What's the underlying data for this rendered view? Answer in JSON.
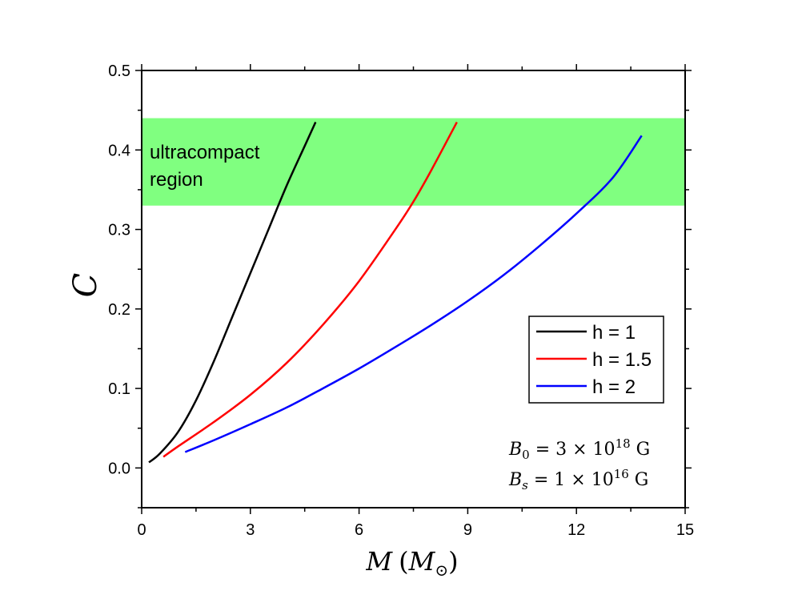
{
  "chart_data": {
    "type": "line",
    "xlabel": {
      "main": "M",
      "open": "(",
      "unit": "M",
      "unit_sub": "⊙",
      "close": ")"
    },
    "ylabel": "C",
    "xlim": [
      0,
      15
    ],
    "ylim": [
      -0.05,
      0.5
    ],
    "xticks": [
      0,
      3,
      6,
      9,
      12,
      15
    ],
    "xtick_labels": [
      "0",
      "3",
      "6",
      "9",
      "12",
      "15"
    ],
    "yticks": [
      0.0,
      0.1,
      0.2,
      0.3,
      0.4,
      0.5
    ],
    "ytick_labels": [
      "0.0",
      "0.1",
      "0.2",
      "0.3",
      "0.4",
      "0.5"
    ],
    "grid": false,
    "legend_position": "center-right",
    "band": {
      "y_min": 0.33,
      "y_max": 0.44,
      "color": "#80ff80",
      "label_line1": "ultracompact",
      "label_line2": "region"
    },
    "series": [
      {
        "name": "h = 1",
        "color": "#000000",
        "points": [
          [
            0.2,
            0.007
          ],
          [
            0.5,
            0.018
          ],
          [
            1.0,
            0.045
          ],
          [
            1.5,
            0.085
          ],
          [
            2.0,
            0.135
          ],
          [
            2.5,
            0.19
          ],
          [
            3.0,
            0.245
          ],
          [
            3.5,
            0.3
          ],
          [
            4.0,
            0.355
          ],
          [
            4.5,
            0.405
          ],
          [
            4.8,
            0.435
          ]
        ]
      },
      {
        "name": "h = 1.5",
        "color": "#ff0000",
        "points": [
          [
            0.6,
            0.014
          ],
          [
            1.0,
            0.027
          ],
          [
            2.0,
            0.058
          ],
          [
            3.0,
            0.092
          ],
          [
            4.0,
            0.132
          ],
          [
            5.0,
            0.18
          ],
          [
            6.0,
            0.235
          ],
          [
            7.0,
            0.3
          ],
          [
            7.5,
            0.335
          ],
          [
            8.0,
            0.375
          ],
          [
            8.7,
            0.435
          ]
        ]
      },
      {
        "name": "h = 2",
        "color": "#0000ff",
        "points": [
          [
            1.2,
            0.02
          ],
          [
            2.0,
            0.035
          ],
          [
            3.0,
            0.055
          ],
          [
            4.0,
            0.076
          ],
          [
            5.0,
            0.1
          ],
          [
            6.0,
            0.125
          ],
          [
            7.0,
            0.152
          ],
          [
            8.0,
            0.18
          ],
          [
            9.0,
            0.21
          ],
          [
            10.0,
            0.243
          ],
          [
            11.0,
            0.28
          ],
          [
            12.0,
            0.32
          ],
          [
            13.0,
            0.365
          ],
          [
            13.8,
            0.418
          ]
        ]
      }
    ],
    "annotations": {
      "line1": {
        "var": "B",
        "sub": "0",
        "rel": " = 3 × 10",
        "exp": "18",
        "unit": " G"
      },
      "line2": {
        "var": "B",
        "sub": "s",
        "rel": " = 1 × 10",
        "exp": "16",
        "unit": " G"
      }
    }
  }
}
